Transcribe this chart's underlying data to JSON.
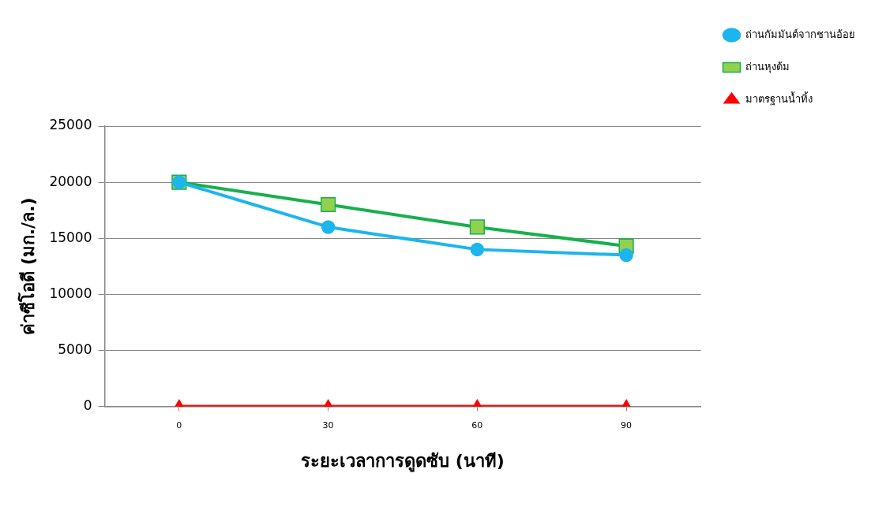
{
  "chart_data": {
    "type": "line",
    "xlabel": "ระยะเวลาการดูดซับ (นาที)",
    "ylabel": "ค่าซีโอดี (มก./ล.)",
    "categories": [
      "0",
      "30",
      "60",
      "90"
    ],
    "series": [
      {
        "name": "ถ่านกัมมันต์จากชานอ้อย",
        "color": "#1cb5ee",
        "marker": "circle",
        "values": [
          20000,
          16000,
          14000,
          13500
        ]
      },
      {
        "name": "ถ่านหุงต้ม",
        "color": "#17b04c",
        "marker": "square",
        "values": [
          20000,
          18000,
          16000,
          14300
        ]
      },
      {
        "name": "มาตรฐานน้ำทิ้ง",
        "color": "#ff0000",
        "marker": "triangle",
        "values": [
          0,
          0,
          0,
          0
        ]
      }
    ],
    "ylim": [
      0,
      25000
    ],
    "yticks": [
      0,
      5000,
      10000,
      15000,
      20000,
      25000
    ],
    "grid": "y",
    "legend": "top right"
  }
}
